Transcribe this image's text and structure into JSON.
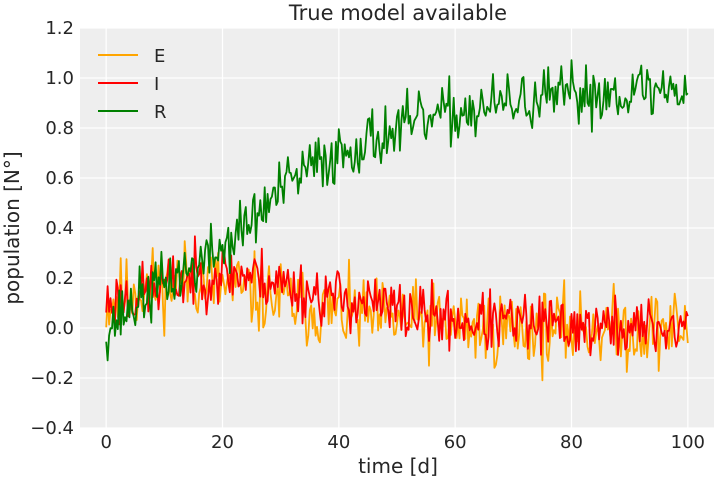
{
  "chart_data": {
    "type": "line",
    "title": "True model available",
    "xlabel": "time [d]",
    "ylabel": "population [N°]",
    "xlim": [
      -4.5,
      104.5
    ],
    "ylim": [
      -0.4,
      1.2
    ],
    "xticks": [
      0,
      20,
      40,
      60,
      80,
      100
    ],
    "yticks": [
      -0.4,
      -0.2,
      0.0,
      0.2,
      0.4,
      0.6,
      0.8,
      1.0,
      1.2
    ],
    "xtick_labels": [
      "0",
      "20",
      "40",
      "60",
      "80",
      "100"
    ],
    "ytick_labels": [
      "−0.4",
      "−0.2",
      "0.0",
      "0.2",
      "0.4",
      "0.6",
      "0.8",
      "1.0",
      "1.2"
    ],
    "grid": true,
    "legend_position": "top-left",
    "background": "#eeeeee",
    "series": [
      {
        "name": "E",
        "color": "#ffa500",
        "x": [
          0,
          5,
          10,
          15,
          20,
          25,
          30,
          35,
          40,
          45,
          50,
          55,
          60,
          65,
          70,
          75,
          80,
          85,
          90,
          95,
          100
        ],
        "y": [
          0.1,
          0.15,
          0.18,
          0.2,
          0.17,
          0.14,
          0.11,
          0.08,
          0.06,
          0.04,
          0.03,
          0.02,
          0.01,
          0.0,
          0.0,
          -0.01,
          0.0,
          0.0,
          -0.01,
          0.0,
          0.0
        ],
        "noise": 0.11,
        "seed": 11
      },
      {
        "name": "I",
        "color": "#ff0000",
        "x": [
          0,
          5,
          10,
          15,
          20,
          25,
          30,
          35,
          40,
          45,
          50,
          55,
          60,
          65,
          70,
          75,
          80,
          85,
          90,
          95,
          100
        ],
        "y": [
          0.1,
          0.13,
          0.17,
          0.2,
          0.22,
          0.21,
          0.18,
          0.14,
          0.12,
          0.1,
          0.07,
          0.05,
          0.03,
          0.02,
          0.02,
          0.01,
          0.01,
          0.0,
          0.0,
          0.0,
          0.0
        ],
        "noise": 0.085,
        "seed": 23
      },
      {
        "name": "R",
        "color": "#008000",
        "x": [
          0,
          5,
          10,
          15,
          20,
          25,
          30,
          35,
          40,
          45,
          50,
          55,
          60,
          65,
          70,
          75,
          80,
          85,
          90,
          95,
          100
        ],
        "y": [
          0.0,
          0.1,
          0.18,
          0.24,
          0.32,
          0.43,
          0.55,
          0.64,
          0.7,
          0.75,
          0.79,
          0.83,
          0.86,
          0.88,
          0.9,
          0.91,
          0.93,
          0.94,
          0.95,
          0.95,
          0.96
        ],
        "noise": 0.085,
        "seed": 37
      }
    ]
  }
}
